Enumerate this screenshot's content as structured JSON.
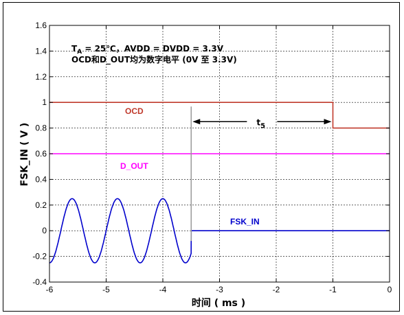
{
  "chart_data": {
    "type": "line",
    "xlabel": "时间 ( ms )",
    "ylabel": "FSK_IN ( V )",
    "xlim": [
      -6,
      0
    ],
    "ylim": [
      -0.4,
      1.6
    ],
    "x_ticks": [
      "-6",
      "-5",
      "-4",
      "-3",
      "-2",
      "-1",
      "0"
    ],
    "y_ticks": [
      "-0.4",
      "-0.2",
      "0",
      "0.2",
      "0.4",
      "0.6",
      "0.8",
      "1",
      "1.2",
      "1.4",
      "1.6"
    ],
    "grid": true,
    "annotation": {
      "line1_main": "T",
      "line1_sub": "A",
      "line1_rest": " = 25℃，AVDD = DVDD = 3.3V",
      "line2": "OCD和D_OUT均为数字电平 (0V 至 3.3V)",
      "t5_main": "t",
      "t5_sub": "5"
    },
    "series": [
      {
        "name": "OCD",
        "color": "#c0392b",
        "x": [
          -6,
          -1,
          -1,
          0
        ],
        "y": [
          1.0,
          1.0,
          0.8,
          0.8
        ]
      },
      {
        "name": "D_OUT",
        "color": "#ff00ff",
        "x": [
          -6,
          0
        ],
        "y": [
          0.6,
          0.6
        ]
      },
      {
        "name": "FSK_IN",
        "color": "#0000cc",
        "amplitude": 0.25,
        "period_ms": 0.8,
        "phase_x0": -5.8,
        "stop_x": -3.5,
        "x": [
          -3.5,
          0
        ],
        "y": [
          0,
          0
        ]
      }
    ],
    "marker_x": -3.5,
    "t5_range": [
      -3.5,
      -1
    ]
  }
}
